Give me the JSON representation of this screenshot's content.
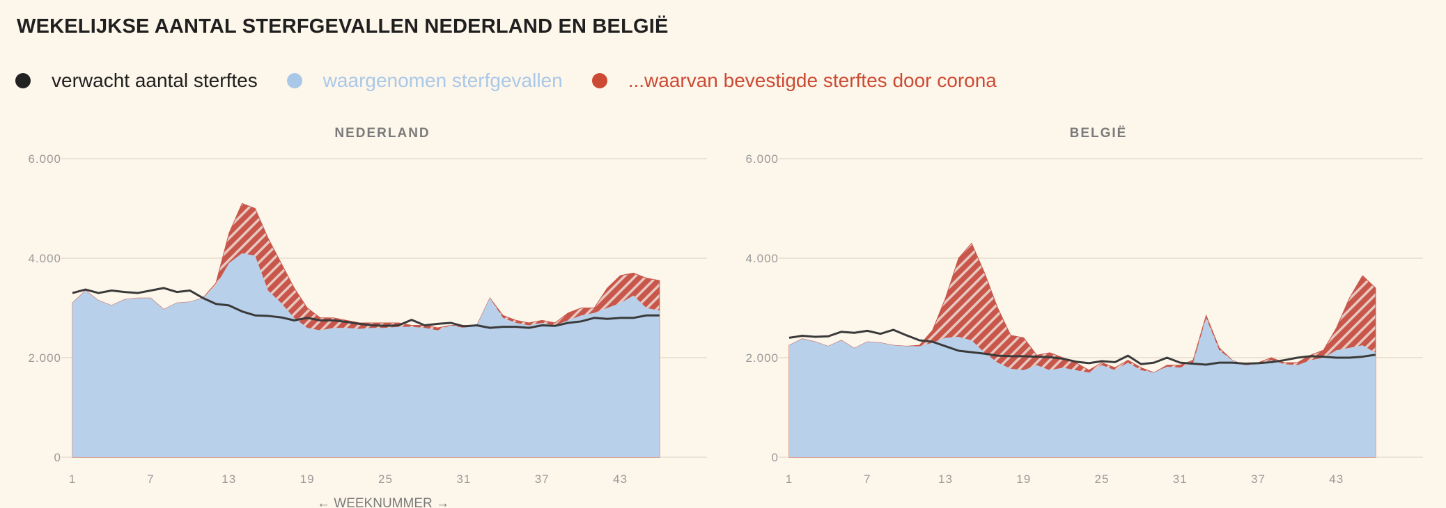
{
  "title": "WEKELIJKSE AANTAL STERFGEVALLEN NEDERLAND EN BELGIË",
  "legend": [
    {
      "label": "verwacht aantal sterftes",
      "color": "#222222"
    },
    {
      "label": "waargenomen sterfgevallen",
      "color": "#a9c8e8"
    },
    {
      "label": "...waarvan bevestigde sterftes door corona",
      "color": "#cc4a33"
    }
  ],
  "colors": {
    "observed_fill": "#b8d0ea",
    "corona_fill": "#c8564a",
    "hatch": "#e6c8c0",
    "expected_line": "#3a3a3a",
    "grid": "#e4ddd0"
  },
  "x_axis_label": "← WEEKNUMMER →",
  "chart_data": [
    {
      "type": "area",
      "title": "NEDERLAND",
      "ylim": [
        0,
        6000
      ],
      "yticks": [
        "6.000",
        "4.000",
        "2.000",
        "0"
      ],
      "ytick_values": [
        6000,
        4000,
        2000,
        0
      ],
      "xticks": [
        "1",
        "7",
        "13",
        "19",
        "25",
        "31",
        "37",
        "43"
      ],
      "xtick_values": [
        1,
        7,
        13,
        19,
        25,
        31,
        37,
        43
      ],
      "xlim": [
        1,
        49
      ],
      "x": [
        1,
        2,
        3,
        4,
        5,
        6,
        7,
        8,
        9,
        10,
        11,
        12,
        13,
        14,
        15,
        16,
        17,
        18,
        19,
        20,
        21,
        22,
        23,
        24,
        25,
        26,
        27,
        28,
        29,
        30,
        31,
        32,
        33,
        34,
        35,
        36,
        37,
        38,
        39,
        40,
        41,
        42,
        43,
        44,
        45,
        46
      ],
      "series": [
        {
          "name": "waargenomen sterfgevallen",
          "values": [
            3100,
            3350,
            3150,
            3050,
            3170,
            3200,
            3200,
            2970,
            3100,
            3120,
            3200,
            3450,
            3900,
            4100,
            4050,
            3350,
            3100,
            2800,
            2600,
            2550,
            2600,
            2600,
            2580,
            2600,
            2600,
            2620,
            2620,
            2600,
            2550,
            2650,
            2600,
            2650,
            3200,
            2800,
            2700,
            2650,
            2700,
            2650,
            2750,
            2850,
            2900,
            3000,
            3100,
            3250,
            3000,
            2950
          ]
        },
        {
          "name": "...waarvan bevestigde sterftes door corona",
          "values": [
            3100,
            3350,
            3150,
            3050,
            3170,
            3200,
            3200,
            2970,
            3100,
            3120,
            3200,
            3500,
            4500,
            5100,
            5000,
            4400,
            3900,
            3400,
            3000,
            2800,
            2800,
            2750,
            2700,
            2700,
            2700,
            2700,
            2650,
            2650,
            2600,
            2650,
            2650,
            2650,
            3200,
            2850,
            2750,
            2700,
            2750,
            2700,
            2900,
            3000,
            3000,
            3400,
            3650,
            3700,
            3600,
            3550
          ]
        },
        {
          "name": "verwacht aantal sterftes",
          "values": [
            3300,
            3370,
            3300,
            3350,
            3320,
            3300,
            3350,
            3400,
            3320,
            3350,
            3200,
            3080,
            3050,
            2930,
            2850,
            2840,
            2810,
            2750,
            2800,
            2750,
            2750,
            2720,
            2680,
            2650,
            2640,
            2650,
            2760,
            2650,
            2680,
            2700,
            2630,
            2650,
            2600,
            2620,
            2620,
            2600,
            2650,
            2640,
            2700,
            2730,
            2800,
            2780,
            2800,
            2800,
            2850,
            2850
          ]
        }
      ]
    },
    {
      "type": "area",
      "title": "BELGIË",
      "ylim": [
        0,
        6000
      ],
      "yticks": [
        "6.000",
        "4.000",
        "2.000",
        "0"
      ],
      "ytick_values": [
        6000,
        4000,
        2000,
        0
      ],
      "xticks": [
        "1",
        "7",
        "13",
        "19",
        "25",
        "31",
        "37",
        "43"
      ],
      "xtick_values": [
        1,
        7,
        13,
        19,
        25,
        31,
        37,
        43
      ],
      "xlim": [
        1,
        49
      ],
      "x": [
        1,
        2,
        3,
        4,
        5,
        6,
        7,
        8,
        9,
        10,
        11,
        12,
        13,
        14,
        15,
        16,
        17,
        18,
        19,
        20,
        21,
        22,
        23,
        24,
        25,
        26,
        27,
        28,
        29,
        30,
        31,
        32,
        33,
        34,
        35,
        36,
        37,
        38,
        39,
        40,
        41,
        42,
        43,
        44,
        45,
        46
      ],
      "series": [
        {
          "name": "waargenomen sterfgevallen",
          "values": [
            2250,
            2380,
            2320,
            2230,
            2350,
            2190,
            2320,
            2300,
            2250,
            2230,
            2230,
            2300,
            2400,
            2420,
            2350,
            2100,
            1900,
            1780,
            1750,
            1850,
            1750,
            1800,
            1750,
            1700,
            1850,
            1750,
            1900,
            1750,
            1700,
            1820,
            1800,
            1900,
            2800,
            2150,
            1950,
            1850,
            1870,
            1950,
            1870,
            1850,
            1950,
            2000,
            2150,
            2200,
            2250,
            2100
          ]
        },
        {
          "name": "...waarvan bevestigde sterftes door corona",
          "values": [
            2250,
            2380,
            2320,
            2230,
            2350,
            2190,
            2320,
            2300,
            2250,
            2230,
            2250,
            2550,
            3200,
            4000,
            4300,
            3700,
            3000,
            2450,
            2400,
            2050,
            2100,
            2000,
            1900,
            1750,
            1900,
            1800,
            1950,
            1800,
            1700,
            1850,
            1850,
            1950,
            2850,
            2200,
            1950,
            1850,
            1900,
            2000,
            1900,
            1900,
            2050,
            2150,
            2600,
            3200,
            3650,
            3400
          ]
        },
        {
          "name": "verwacht aantal sterftes",
          "values": [
            2400,
            2440,
            2420,
            2430,
            2520,
            2500,
            2540,
            2480,
            2560,
            2450,
            2350,
            2320,
            2230,
            2140,
            2110,
            2080,
            2040,
            2030,
            2030,
            2020,
            2010,
            1980,
            1920,
            1890,
            1930,
            1910,
            2040,
            1870,
            1900,
            2000,
            1900,
            1880,
            1860,
            1900,
            1900,
            1880,
            1890,
            1910,
            1950,
            2000,
            2030,
            2020,
            2000,
            2000,
            2020,
            2060
          ]
        }
      ]
    }
  ]
}
